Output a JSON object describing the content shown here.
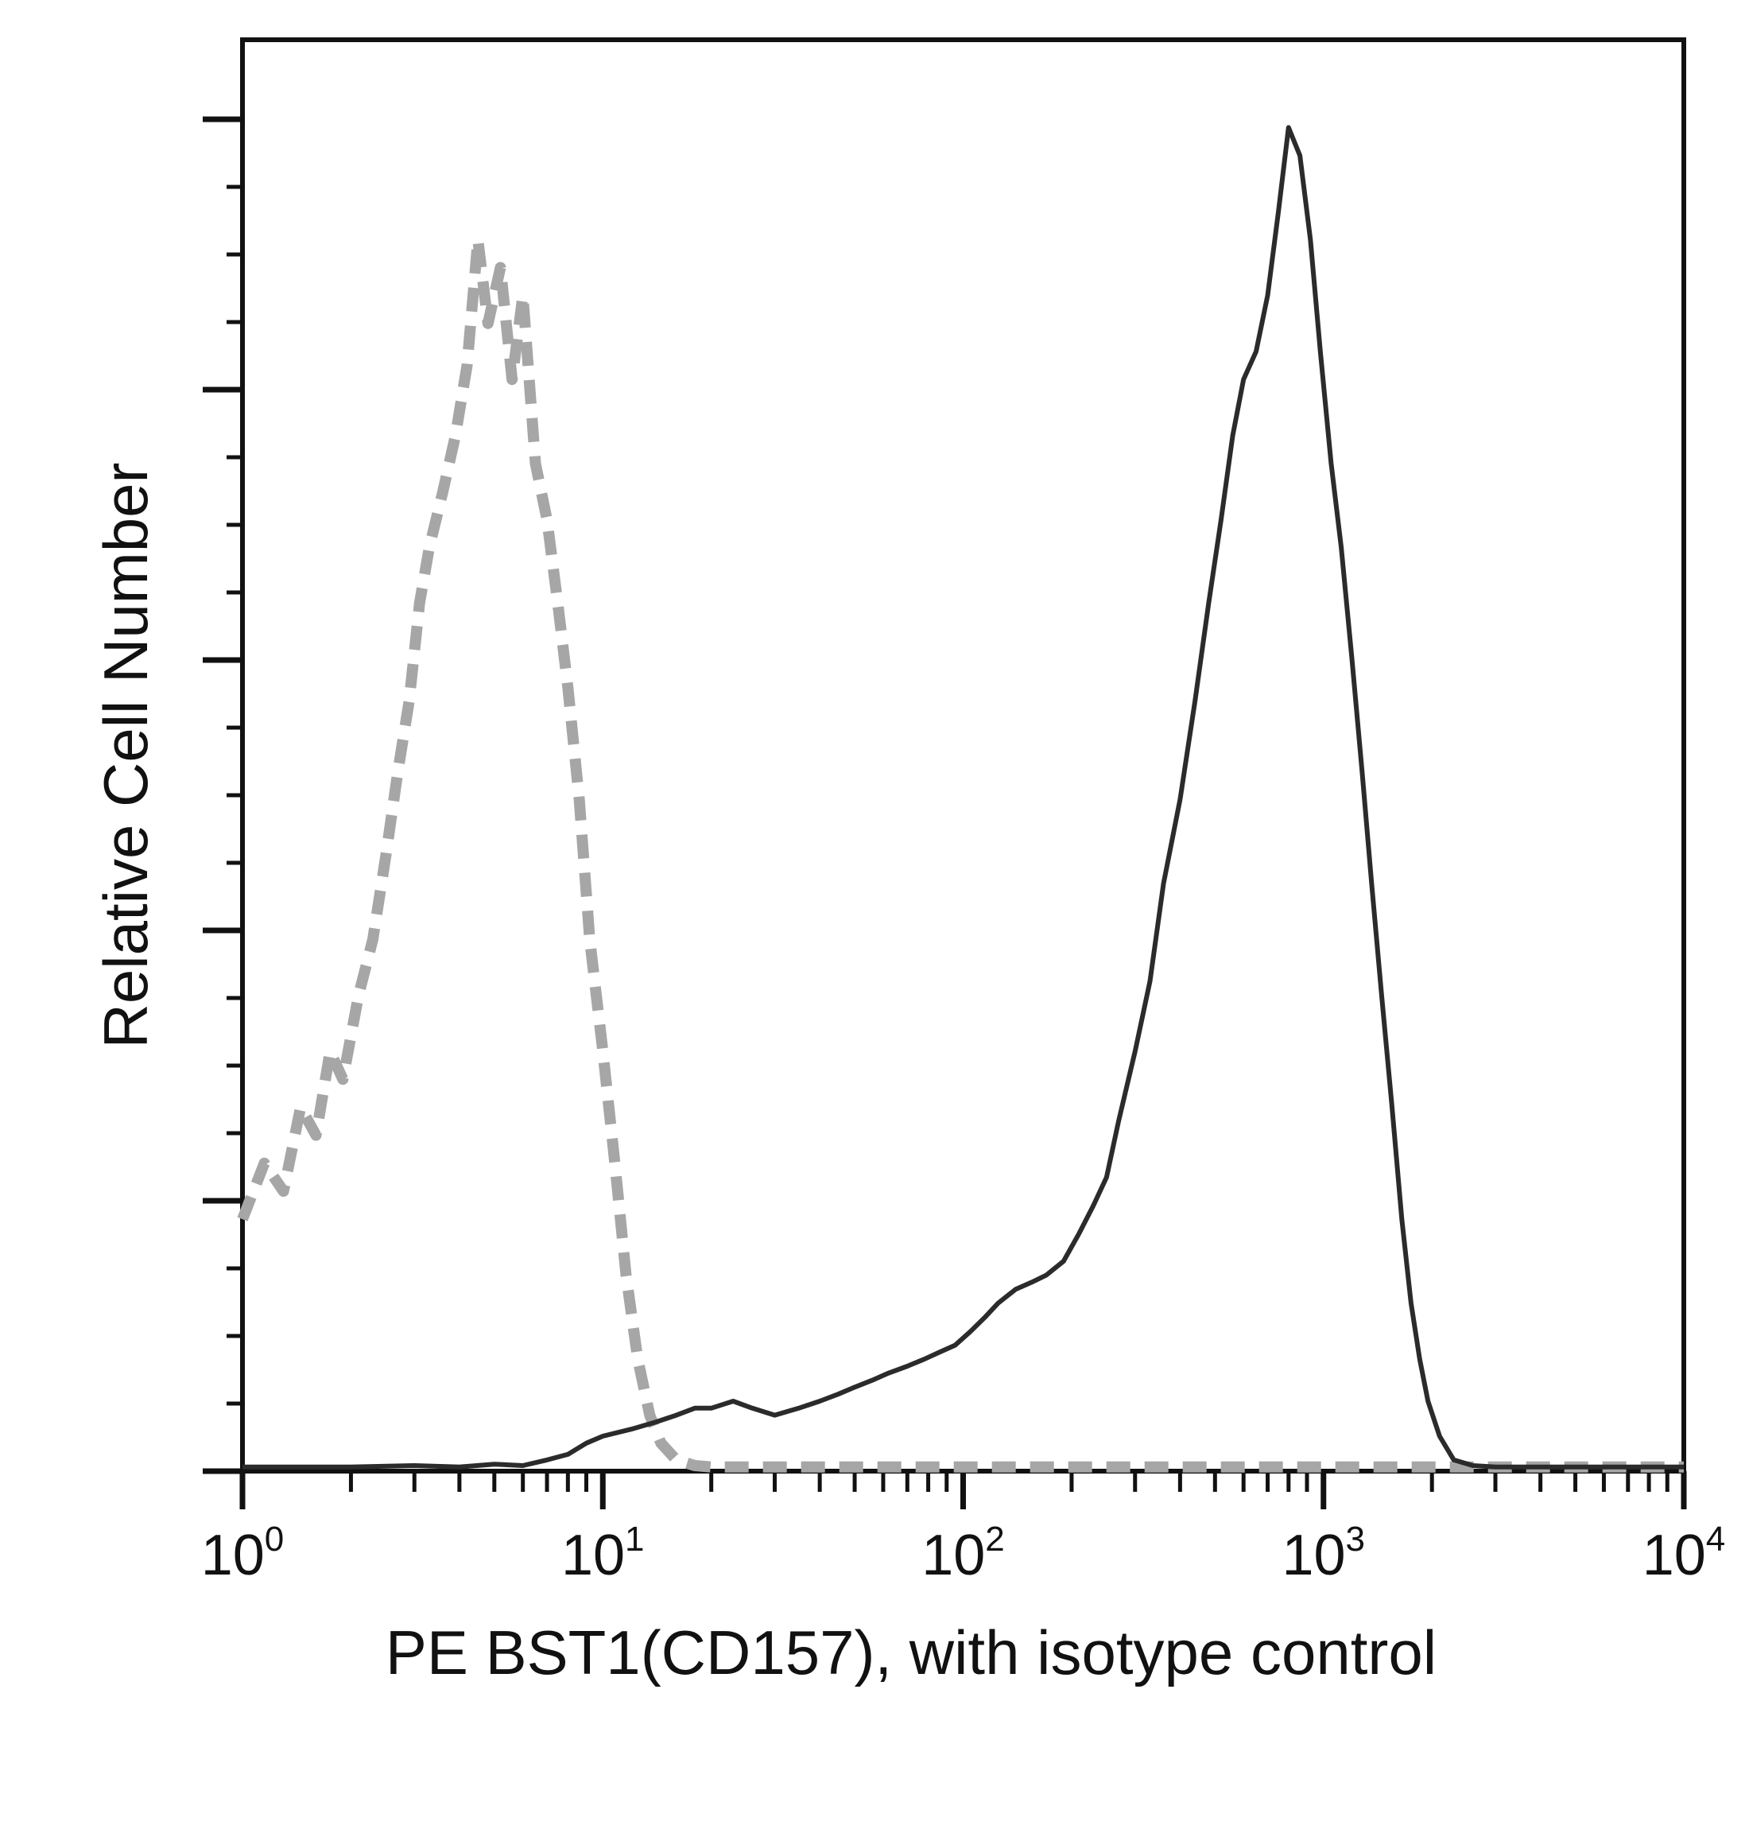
{
  "chart_data": {
    "type": "line",
    "title": "",
    "xlabel": "PE BST1(CD157), with isotype control",
    "ylabel": "Relative Cell Number",
    "x_scale": "log",
    "xlim": [
      1,
      10000
    ],
    "ylim": [
      0,
      100
    ],
    "grid": false,
    "legend": "none",
    "x_ticks": [
      {
        "value": 1,
        "base": "10",
        "exp": "0"
      },
      {
        "value": 10,
        "base": "10",
        "exp": "1"
      },
      {
        "value": 100,
        "base": "10",
        "exp": "2"
      },
      {
        "value": 1000,
        "base": "10",
        "exp": "3"
      },
      {
        "value": 10000,
        "base": "10",
        "exp": "4"
      }
    ],
    "series": [
      {
        "role": "isotype-control",
        "style": "dashed",
        "color": "#a6a6a6",
        "x": [
          1,
          1.15,
          1.3,
          1.45,
          1.6,
          1.75,
          1.9,
          2.1,
          2.3,
          2.5,
          2.7,
          2.9,
          3.1,
          3.3,
          3.6,
          3.9,
          4.2,
          4.5,
          4.8,
          5.2,
          5.6,
          6.0,
          6.5,
          7.0,
          7.5,
          8.0,
          8.6,
          9.2,
          10.0,
          10.8,
          11.6,
          12.5,
          13.5,
          14.5,
          16,
          18,
          20,
          22,
          30,
          200,
          400,
          800,
          1600,
          10000
        ],
        "y": [
          18,
          22,
          20,
          26,
          24,
          30,
          28,
          34,
          38,
          44,
          50,
          55,
          62,
          66,
          70,
          74,
          79,
          88,
          82,
          86,
          78,
          84,
          72,
          68,
          62,
          56,
          48,
          38,
          30,
          22,
          14,
          8,
          4,
          2,
          0.8,
          0.4,
          0.3,
          0.3,
          0.3,
          0.3,
          0.3,
          0.3,
          0.3,
          0.3
        ]
      },
      {
        "role": "PE BST1(CD157)",
        "style": "solid",
        "color": "#2b2b2b",
        "x": [
          1,
          2,
          3,
          4,
          5,
          6,
          7,
          8,
          9,
          10,
          12,
          14,
          16,
          18,
          20,
          23,
          26,
          30,
          35,
          40,
          45,
          50,
          56,
          62,
          70,
          78,
          86,
          95,
          105,
          115,
          125,
          140,
          155,
          170,
          190,
          210,
          230,
          250,
          270,
          300,
          330,
          360,
          400,
          440,
          480,
          520,
          560,
          600,
          650,
          700,
          750,
          800,
          860,
          920,
          980,
          1050,
          1120,
          1200,
          1280,
          1360,
          1450,
          1550,
          1650,
          1750,
          1850,
          1950,
          2100,
          2300,
          2600,
          3000,
          4000,
          6000,
          10000
        ],
        "y": [
          0.3,
          0.3,
          0.4,
          0.3,
          0.5,
          0.4,
          0.8,
          1.2,
          2,
          2.5,
          3,
          3.5,
          4,
          4.5,
          4.5,
          5,
          4.5,
          4,
          4.5,
          5,
          5.5,
          6,
          6.5,
          7,
          7.5,
          8,
          8.5,
          9,
          10,
          11,
          12,
          13,
          13.5,
          14,
          15,
          17,
          19,
          21,
          25,
          30,
          35,
          42,
          48,
          55,
          62,
          68,
          74,
          78,
          80,
          84,
          90,
          96,
          94,
          88,
          80,
          72,
          66,
          58,
          50,
          42,
          34,
          26,
          18,
          12,
          8,
          5,
          2.5,
          0.8,
          0.4,
          0.3,
          0.3,
          0.3,
          0.3
        ]
      }
    ]
  }
}
